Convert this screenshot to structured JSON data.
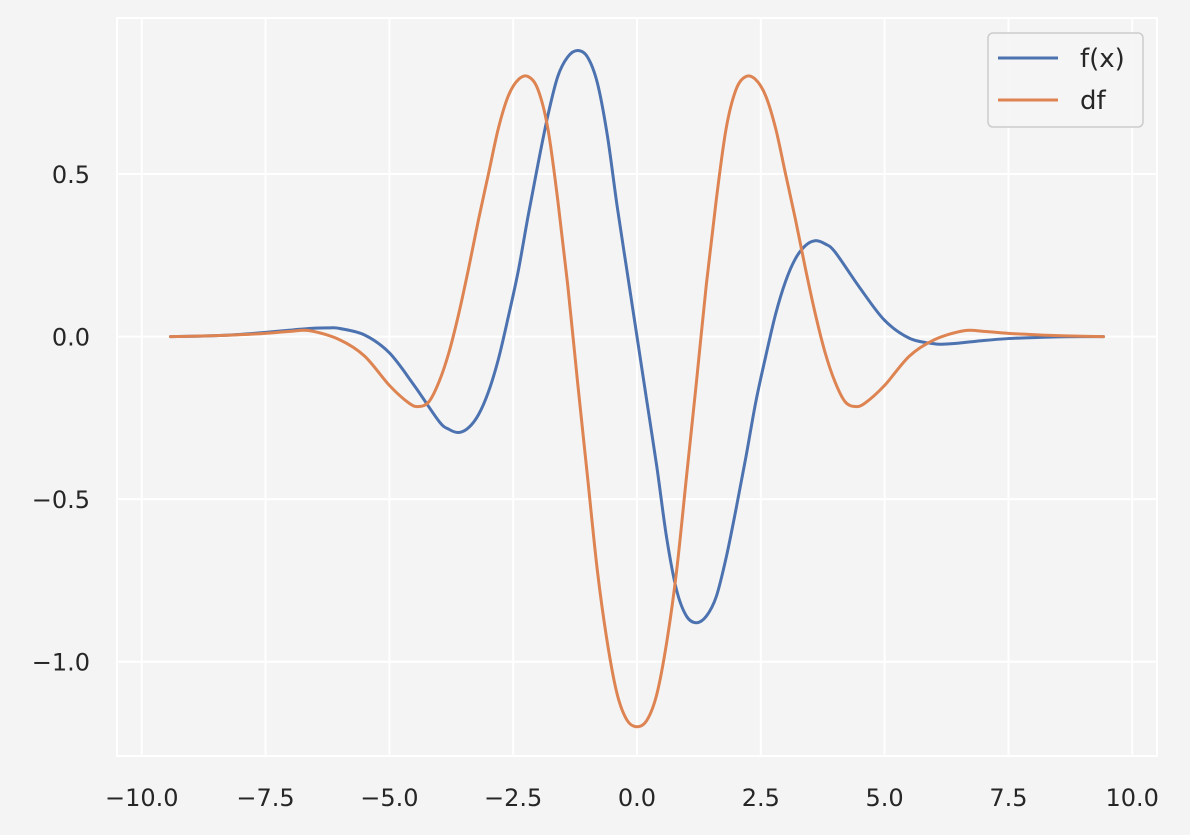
{
  "colors": {
    "background": "#f4f4f4",
    "plot_background": "#f4f4f4",
    "grid": "#ffffff",
    "text": "#262626",
    "series_fx": "#4c72b0",
    "series_df": "#dd8452"
  },
  "chart_data": {
    "type": "line",
    "title": "",
    "xlabel": "",
    "ylabel": "",
    "xlim": [
      -10.5,
      10.5
    ],
    "ylim": [
      -1.29,
      0.98
    ],
    "grid": true,
    "legend_position": "top-right",
    "x_ticks": [
      -10.0,
      -7.5,
      -5.0,
      -2.5,
      0.0,
      2.5,
      5.0,
      7.5,
      10.0
    ],
    "x_tick_labels": [
      "−10.0",
      "−7.5",
      "−5.0",
      "−2.5",
      "0.0",
      "2.5",
      "5.0",
      "7.5",
      "10.0"
    ],
    "y_ticks": [
      -1.0,
      -0.5,
      0.0,
      0.5
    ],
    "y_tick_labels": [
      "−1.0",
      "−0.5",
      "0.0",
      "0.5"
    ],
    "series": [
      {
        "name": "f(x)",
        "color": "#4c72b0",
        "x": [
          -9.42,
          -9.0,
          -8.5,
          -8.0,
          -7.5,
          -7.0,
          -6.5,
          -6.2,
          -6.0,
          -5.5,
          -5.0,
          -4.5,
          -4.0,
          -3.8,
          -3.6,
          -3.4,
          -3.2,
          -3.0,
          -2.8,
          -2.6,
          -2.4,
          -2.2,
          -2.0,
          -1.8,
          -1.6,
          -1.4,
          -1.2,
          -1.0,
          -0.8,
          -0.6,
          -0.4,
          -0.2,
          0.0,
          0.2,
          0.4,
          0.6,
          0.8,
          1.0,
          1.2,
          1.4,
          1.6,
          1.8,
          2.0,
          2.2,
          2.4,
          2.6,
          2.8,
          3.0,
          3.2,
          3.4,
          3.6,
          3.8,
          4.0,
          4.5,
          5.0,
          5.5,
          6.0,
          6.2,
          6.5,
          7.0,
          7.5,
          8.0,
          8.5,
          9.0,
          9.42
        ],
        "y": [
          0.0,
          0.001,
          0.003,
          0.007,
          0.013,
          0.02,
          0.026,
          0.027,
          0.025,
          0.005,
          -0.05,
          -0.15,
          -0.26,
          -0.285,
          -0.295,
          -0.28,
          -0.24,
          -0.17,
          -0.07,
          0.06,
          0.2,
          0.37,
          0.53,
          0.68,
          0.8,
          0.86,
          0.88,
          0.86,
          0.78,
          0.62,
          0.4,
          0.2,
          0.0,
          -0.2,
          -0.4,
          -0.62,
          -0.78,
          -0.86,
          -0.88,
          -0.86,
          -0.8,
          -0.68,
          -0.53,
          -0.37,
          -0.2,
          -0.06,
          0.07,
          0.17,
          0.24,
          0.28,
          0.295,
          0.285,
          0.26,
          0.15,
          0.05,
          -0.005,
          -0.022,
          -0.023,
          -0.02,
          -0.012,
          -0.006,
          -0.003,
          -0.001,
          0.0,
          0.0
        ]
      },
      {
        "name": "df",
        "color": "#dd8452",
        "x": [
          -9.42,
          -9.0,
          -8.5,
          -8.0,
          -7.5,
          -7.0,
          -6.6,
          -6.0,
          -5.5,
          -5.0,
          -4.6,
          -4.4,
          -4.2,
          -4.0,
          -3.8,
          -3.6,
          -3.4,
          -3.2,
          -3.0,
          -2.8,
          -2.6,
          -2.4,
          -2.2,
          -2.0,
          -1.8,
          -1.6,
          -1.4,
          -1.2,
          -1.0,
          -0.8,
          -0.6,
          -0.4,
          -0.2,
          0.0,
          0.2,
          0.4,
          0.6,
          0.8,
          1.0,
          1.2,
          1.4,
          1.6,
          1.8,
          2.0,
          2.2,
          2.4,
          2.6,
          2.8,
          3.0,
          3.2,
          3.4,
          3.6,
          3.8,
          4.0,
          4.2,
          4.4,
          4.6,
          5.0,
          5.5,
          6.0,
          6.6,
          7.0,
          7.5,
          8.0,
          8.5,
          9.0,
          9.42
        ],
        "y": [
          0.0,
          0.001,
          0.003,
          0.006,
          0.01,
          0.016,
          0.018,
          -0.01,
          -0.06,
          -0.15,
          -0.205,
          -0.215,
          -0.2,
          -0.14,
          -0.05,
          0.07,
          0.21,
          0.36,
          0.5,
          0.64,
          0.74,
          0.79,
          0.8,
          0.76,
          0.64,
          0.42,
          0.16,
          -0.14,
          -0.43,
          -0.72,
          -0.94,
          -1.1,
          -1.18,
          -1.2,
          -1.18,
          -1.1,
          -0.94,
          -0.72,
          -0.43,
          -0.14,
          0.16,
          0.42,
          0.64,
          0.76,
          0.8,
          0.79,
          0.74,
          0.64,
          0.5,
          0.36,
          0.21,
          0.07,
          -0.05,
          -0.14,
          -0.2,
          -0.215,
          -0.205,
          -0.15,
          -0.06,
          -0.01,
          0.018,
          0.016,
          0.01,
          0.006,
          0.003,
          0.001,
          0.0
        ]
      }
    ]
  }
}
